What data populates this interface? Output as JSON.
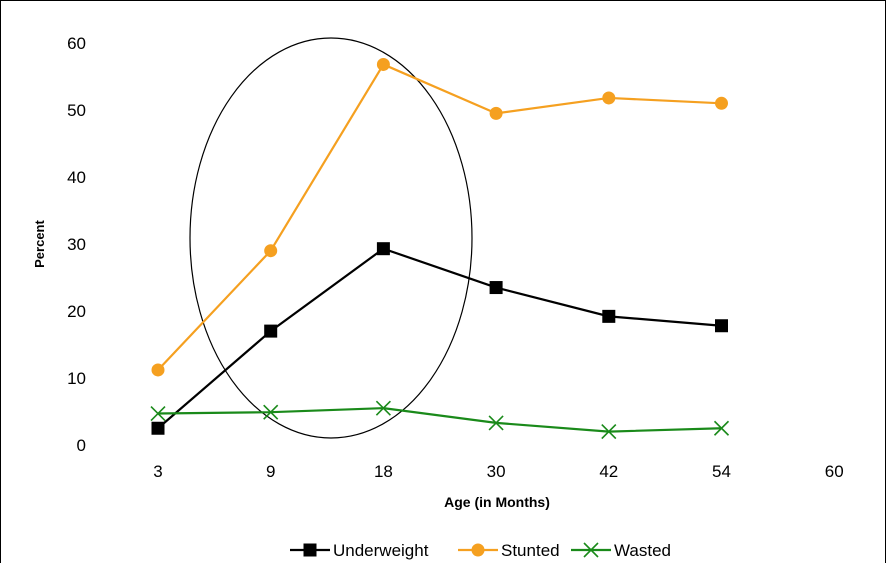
{
  "chart_data": {
    "type": "line",
    "title": "",
    "xlabel": "Age (in Months)",
    "ylabel": "Percent",
    "categories": [
      "3",
      "9",
      "18",
      "30",
      "42",
      "54",
      "60"
    ],
    "ylim": [
      0,
      60
    ],
    "yticks": [
      "0",
      "10",
      "20",
      "30",
      "40",
      "50",
      "60"
    ],
    "grid": false,
    "legend_position": "bottom",
    "series": [
      {
        "name": "Underweight",
        "color": "#000000",
        "marker": "square",
        "values": [
          2.5,
          17.0,
          29.3,
          23.5,
          19.2,
          17.8,
          null
        ]
      },
      {
        "name": "Stunted",
        "color": "#f5a020",
        "marker": "circle",
        "values": [
          11.2,
          29.0,
          56.8,
          49.5,
          51.8,
          51.0,
          null
        ]
      },
      {
        "name": "Wasted",
        "color": "#1a8a1a",
        "marker": "x",
        "values": [
          4.7,
          4.9,
          5.5,
          3.3,
          2.0,
          2.5,
          null
        ]
      }
    ],
    "annotation": {
      "shape": "ellipse",
      "description": ""
    }
  }
}
